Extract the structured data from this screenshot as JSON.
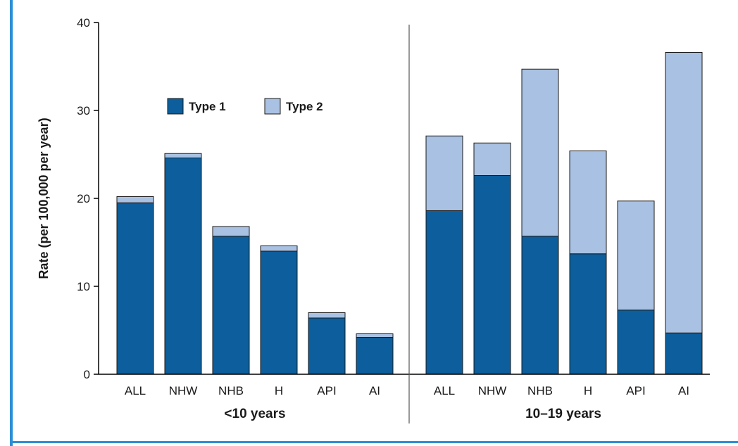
{
  "chart_data": {
    "type": "bar",
    "stacked": true,
    "ylabel": "Rate (per 100,000 per year)",
    "ylim": [
      0,
      40
    ],
    "yticks": [
      0,
      10,
      20,
      30,
      40
    ],
    "legend_position": "top-left",
    "grid": false,
    "colors": {
      "Type 1": "#0c5e9c",
      "Type 2": "#a9c2e3"
    },
    "groups": [
      {
        "name": "<10 years",
        "categories": [
          "ALL",
          "NHW",
          "NHB",
          "H",
          "API",
          "AI"
        ],
        "series": [
          {
            "name": "Type 1",
            "values": [
              19.5,
              24.6,
              15.7,
              14.0,
              6.4,
              4.2
            ]
          },
          {
            "name": "Type 2",
            "values": [
              0.7,
              0.5,
              1.1,
              0.6,
              0.6,
              0.4
            ]
          }
        ]
      },
      {
        "name": "10–19 years",
        "categories": [
          "ALL",
          "NHW",
          "NHB",
          "H",
          "API",
          "AI"
        ],
        "series": [
          {
            "name": "Type 1",
            "values": [
              18.6,
              22.6,
              15.7,
              13.7,
              7.3,
              4.7
            ]
          },
          {
            "name": "Type 2",
            "values": [
              8.5,
              3.7,
              19.0,
              11.7,
              12.4,
              31.9
            ]
          }
        ]
      }
    ]
  }
}
